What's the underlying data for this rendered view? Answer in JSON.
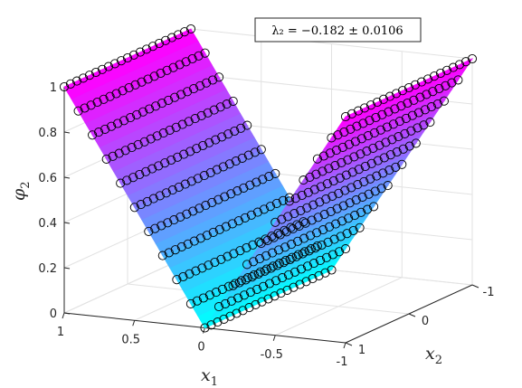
{
  "chart_data": {
    "type": "surface3d",
    "title": "",
    "legend": {
      "text": "λ₂ = −0.182 ± 0.0106",
      "placement": "top-right"
    },
    "axes": {
      "x1": {
        "label": "x",
        "sub": "1",
        "lim": [
          -1,
          1
        ],
        "ticks": [
          -1,
          -0.5,
          0,
          0.5,
          1
        ],
        "tick_labels": [
          "-1",
          "-0.5",
          "0",
          "0.5",
          "1"
        ]
      },
      "x2": {
        "label": "x",
        "sub": "2",
        "lim": [
          -1,
          1
        ],
        "ticks": [
          -1,
          0,
          1
        ],
        "tick_labels": [
          "-1",
          "0",
          "1"
        ]
      },
      "phi": {
        "label": "φ",
        "sub": "2",
        "lim": [
          0,
          1
        ],
        "ticks": [
          0,
          0.2,
          0.4,
          0.6,
          0.8,
          1
        ],
        "tick_labels": [
          "0",
          "0.2",
          "0.4",
          "0.6",
          "0.8",
          "1"
        ]
      }
    },
    "grid": true,
    "surface": {
      "function": "phi = |x1|",
      "colormap": [
        "#00ffff",
        "#ff00ff"
      ]
    },
    "markers": {
      "shape": "circle",
      "facecolor": "none",
      "edgecolor": "#000000",
      "x1_count": 21,
      "x2_count": 21
    }
  }
}
